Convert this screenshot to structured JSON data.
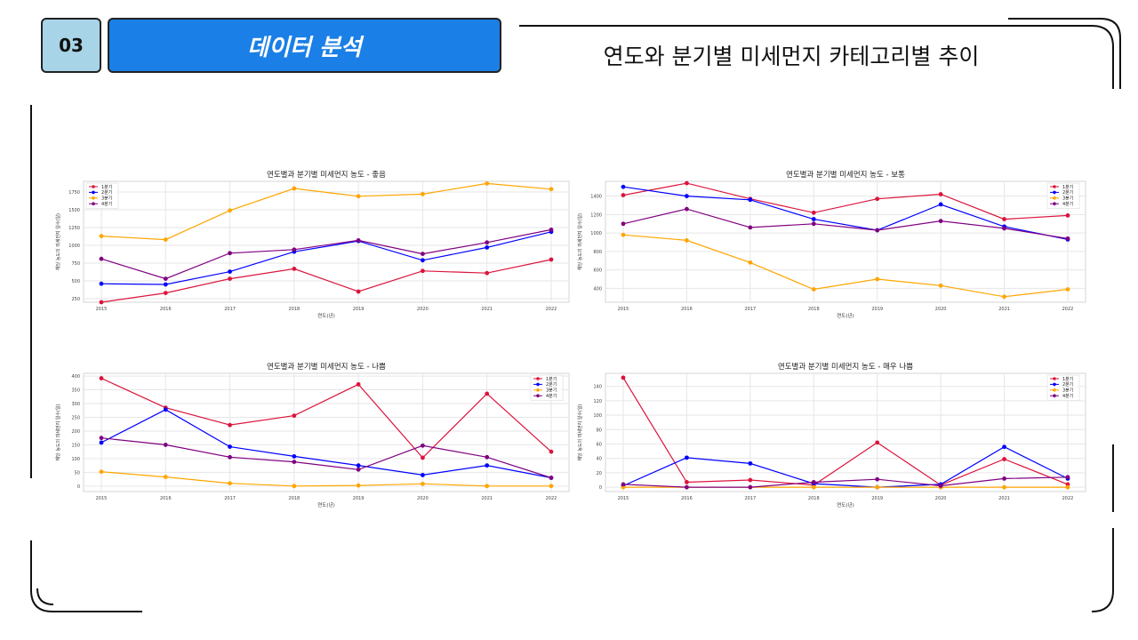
{
  "header": {
    "section_number": "03",
    "section_title": "데이터 분석",
    "slide_title": "연도와 분기별 미세먼지 카테고리별 추이"
  },
  "colors": {
    "q1": "#dc143c",
    "q2": "#0000ff",
    "q3": "#ffa500",
    "q4": "#800080",
    "accent": "#1a7fe6"
  },
  "chart_data": [
    {
      "type": "line",
      "title": "연도별과 분기별 미세먼지 농도 - 좋음",
      "xlabel": "연도(년)",
      "ylabel": "해당 농도의 미세먼지 일수(일)",
      "x": [
        "2015",
        "2016",
        "2017",
        "2018",
        "2019",
        "2020",
        "2021",
        "2022"
      ],
      "ylim": [
        200,
        1900
      ],
      "yticks": [
        250,
        500,
        750,
        1000,
        1250,
        1500,
        1750
      ],
      "legend": "top-left",
      "grid": true,
      "series": [
        {
          "name": "1분기",
          "color": "#dc143c",
          "values": [
            200,
            330,
            530,
            670,
            350,
            640,
            610,
            800
          ]
        },
        {
          "name": "2분기",
          "color": "#0000ff",
          "values": [
            460,
            450,
            630,
            910,
            1060,
            790,
            970,
            1190
          ]
        },
        {
          "name": "3분기",
          "color": "#ffa500",
          "values": [
            1130,
            1080,
            1490,
            1800,
            1690,
            1720,
            1870,
            1790
          ]
        },
        {
          "name": "4분기",
          "color": "#800080",
          "values": [
            810,
            530,
            890,
            940,
            1070,
            880,
            1040,
            1220
          ]
        }
      ]
    },
    {
      "type": "line",
      "title": "연도별과 분기별 미세먼지 농도 - 보통",
      "xlabel": "연도(년)",
      "ylabel": "해당 농도의 미세먼지 일수(일)",
      "x": [
        "2015",
        "2016",
        "2017",
        "2018",
        "2019",
        "2020",
        "2021",
        "2022"
      ],
      "ylim": [
        250,
        1560
      ],
      "yticks": [
        400,
        600,
        800,
        1000,
        1200,
        1400
      ],
      "legend": "top-right",
      "grid": true,
      "series": [
        {
          "name": "1분기",
          "color": "#dc143c",
          "values": [
            1410,
            1540,
            1370,
            1220,
            1370,
            1420,
            1150,
            1190
          ]
        },
        {
          "name": "2분기",
          "color": "#0000ff",
          "values": [
            1500,
            1400,
            1360,
            1150,
            1030,
            1310,
            1070,
            930
          ]
        },
        {
          "name": "3분기",
          "color": "#ffa500",
          "values": [
            980,
            920,
            680,
            390,
            500,
            430,
            310,
            390
          ]
        },
        {
          "name": "4분기",
          "color": "#800080",
          "values": [
            1100,
            1260,
            1060,
            1100,
            1030,
            1130,
            1050,
            940
          ]
        }
      ]
    },
    {
      "type": "line",
      "title": "연도별과 분기별 미세먼지 농도 - 나쁨",
      "xlabel": "연도(년)",
      "ylabel": "해당 농도의 미세먼지 일수(일)",
      "x": [
        "2015",
        "2016",
        "2017",
        "2018",
        "2019",
        "2020",
        "2021",
        "2022"
      ],
      "ylim": [
        -20,
        410
      ],
      "yticks": [
        0,
        50,
        100,
        150,
        200,
        250,
        300,
        350,
        400
      ],
      "legend": "top-right",
      "grid": true,
      "series": [
        {
          "name": "1분기",
          "color": "#dc143c",
          "values": [
            392,
            285,
            222,
            256,
            370,
            103,
            336,
            125
          ]
        },
        {
          "name": "2분기",
          "color": "#0000ff",
          "values": [
            158,
            278,
            143,
            108,
            75,
            40,
            75,
            30
          ]
        },
        {
          "name": "3분기",
          "color": "#ffa500",
          "values": [
            52,
            33,
            10,
            0,
            2,
            8,
            0,
            0
          ]
        },
        {
          "name": "4분기",
          "color": "#800080",
          "values": [
            175,
            150,
            105,
            88,
            60,
            147,
            105,
            30
          ]
        }
      ]
    },
    {
      "type": "line",
      "title": "연도별과 분기별 미세먼지 농도 - 매우 나쁨",
      "xlabel": "연도(년)",
      "ylabel": "해당 농도의 미세먼지 일수(일)",
      "x": [
        "2015",
        "2016",
        "2017",
        "2018",
        "2019",
        "2020",
        "2021",
        "2022"
      ],
      "ylim": [
        -6,
        158
      ],
      "yticks": [
        0,
        20,
        40,
        60,
        80,
        100,
        120,
        140
      ],
      "legend": "top-right",
      "grid": true,
      "series": [
        {
          "name": "1분기",
          "color": "#dc143c",
          "values": [
            152,
            7,
            10,
            3,
            62,
            3,
            39,
            4
          ]
        },
        {
          "name": "2분기",
          "color": "#0000ff",
          "values": [
            2,
            41,
            33,
            5,
            0,
            4,
            56,
            12
          ]
        },
        {
          "name": "3분기",
          "color": "#ffa500",
          "values": [
            0,
            0,
            0,
            0,
            0,
            0,
            0,
            0
          ]
        },
        {
          "name": "4분기",
          "color": "#800080",
          "values": [
            4,
            0,
            0,
            7,
            11,
            2,
            12,
            14
          ]
        }
      ]
    }
  ]
}
